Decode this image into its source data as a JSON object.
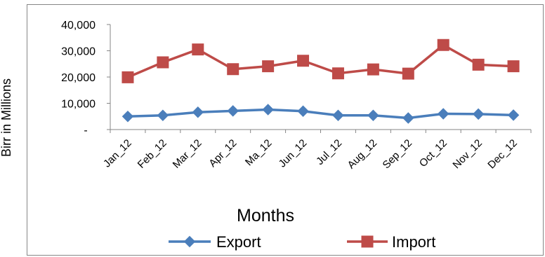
{
  "chart_data": {
    "type": "line",
    "categories": [
      "Jan_12",
      "Feb_12",
      "Mar_12",
      "Apr_12",
      "Ma_12",
      "Jun_12",
      "Jul_12",
      "Aug_12",
      "Sep_12",
      "Oct_12",
      "Nov_12",
      "Dec_12"
    ],
    "series": [
      {
        "name": "Export",
        "color": "#4a7ebb",
        "marker": "diamond",
        "values": [
          5000,
          5400,
          6600,
          7100,
          7600,
          7000,
          5400,
          5400,
          4400,
          6000,
          5900,
          5500
        ]
      },
      {
        "name": "Import",
        "color": "#be4b48",
        "marker": "square",
        "values": [
          19900,
          25600,
          30500,
          23000,
          24100,
          26200,
          21400,
          22900,
          21300,
          32200,
          24700,
          24100
        ]
      }
    ],
    "yticks": [
      {
        "value": 0,
        "label": "-"
      },
      {
        "value": 10000,
        "label": "10,000"
      },
      {
        "value": 20000,
        "label": "20,000"
      },
      {
        "value": 30000,
        "label": "30,000"
      },
      {
        "value": 40000,
        "label": "40,000"
      }
    ],
    "xlabel": "Months",
    "ylabel": "Birr in Millions",
    "ylim": [
      0,
      40000
    ],
    "grid": false,
    "legend": "bottom"
  }
}
